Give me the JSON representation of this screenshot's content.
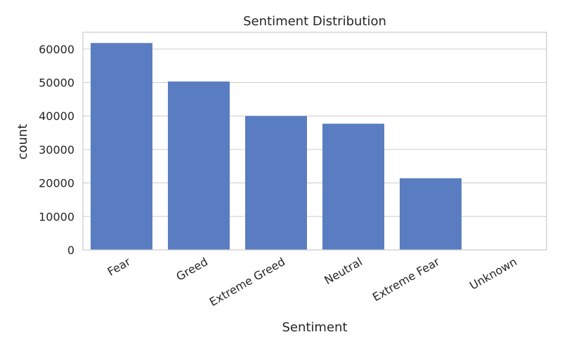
{
  "chart_data": {
    "type": "bar",
    "title": "Sentiment Distribution",
    "xlabel": "Sentiment",
    "ylabel": "count",
    "categories": [
      "Fear",
      "Greed",
      "Extreme Greed",
      "Neutral",
      "Extreme Fear",
      "Unknown"
    ],
    "values": [
      61800,
      50300,
      40000,
      37700,
      21400,
      0
    ],
    "ylim": [
      0,
      65000
    ],
    "yticks": [
      0,
      10000,
      20000,
      30000,
      40000,
      50000,
      60000
    ],
    "grid": "y",
    "legend": "none",
    "bar_color": "#5a7dc2",
    "grid_color": "#cccccc",
    "spine_color": "#cccccc"
  }
}
